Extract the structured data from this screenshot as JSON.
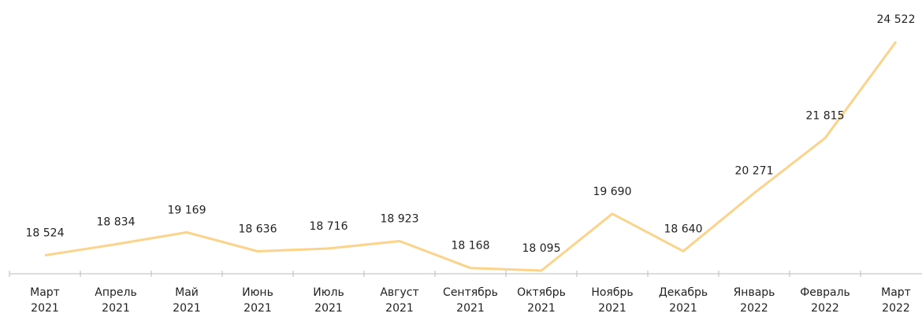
{
  "chart_data": {
    "type": "line",
    "categories": [
      "Март 2021",
      "Апрель 2021",
      "Май 2021",
      "Июнь 2021",
      "Июль 2021",
      "Август 2021",
      "Сентябрь 2021",
      "Октябрь 2021",
      "Ноябрь 2021",
      "Декабрь 2021",
      "Январь 2022",
      "Февраль 2022",
      "Март 2022"
    ],
    "series": [
      {
        "color": "#fbd38a",
        "values": [
          18524,
          18834,
          19169,
          18636,
          18716,
          18923,
          18168,
          18095,
          19690,
          18640,
          20271,
          21815,
          24522
        ],
        "value_labels": [
          "18 524",
          "18 834",
          "19 169",
          "18 636",
          "18 716",
          "18 923",
          "18 168",
          "18 095",
          "19 690",
          "18 640",
          "20 271",
          "21 815",
          "24 522"
        ]
      }
    ]
  }
}
